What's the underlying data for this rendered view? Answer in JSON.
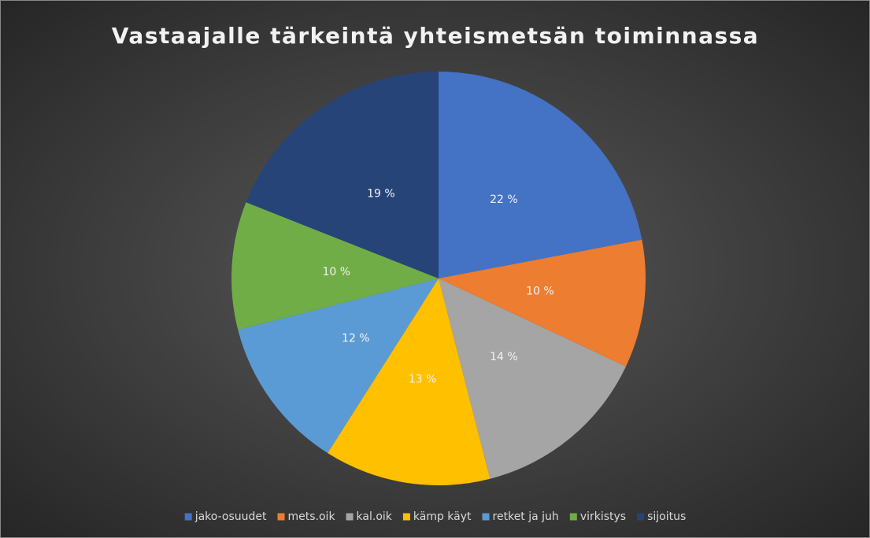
{
  "chart_data": {
    "type": "pie",
    "title": "Vastaajalle tärkeintä yhteismetsän toiminnassa",
    "categories": [
      "jako-osuudet",
      "mets.oik",
      "kal.oik",
      "kämp käyt",
      "retket ja juh",
      "virkistys",
      "sijoitus"
    ],
    "values": [
      22,
      10,
      14,
      13,
      12,
      10,
      19
    ],
    "value_labels": [
      "22 %",
      "10 %",
      "14 %",
      "13 %",
      "12 %",
      "10 %",
      "19 %"
    ],
    "colors": [
      "#4472c4",
      "#ed7d31",
      "#a5a5a5",
      "#ffc000",
      "#5b9bd5",
      "#70ad47",
      "#264478"
    ],
    "legend": "bottom"
  }
}
